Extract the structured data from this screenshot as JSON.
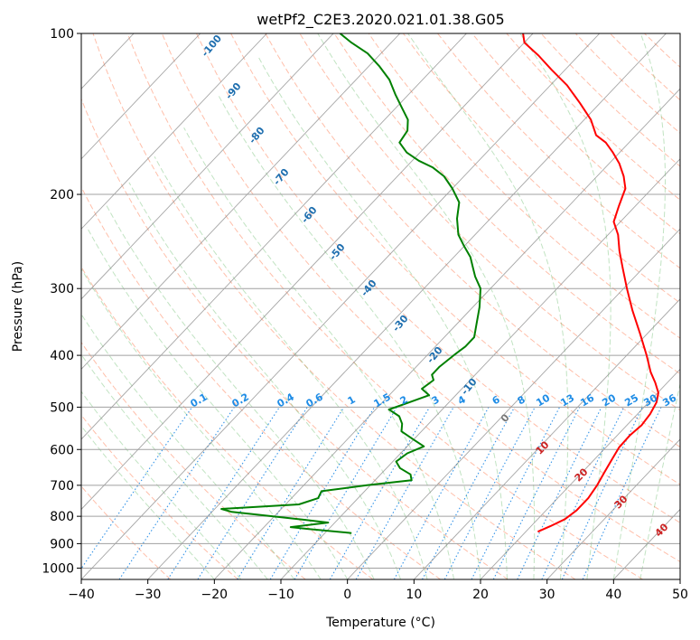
{
  "chart_data": {
    "type": "line",
    "title": "wetPf2_C2E3.2020.021.01.38.G05",
    "xlabel": "Temperature (°C)",
    "ylabel": "Pressure (hPa)",
    "xlim": [
      -40,
      50
    ],
    "ylim": [
      1050,
      100
    ],
    "yscale": "log",
    "x_ticks": [
      -40,
      -30,
      -20,
      -10,
      0,
      10,
      20,
      30,
      40,
      50
    ],
    "y_ticks": [
      100,
      200,
      300,
      400,
      500,
      600,
      700,
      800,
      900,
      1000
    ],
    "grid": true,
    "skew": true,
    "series": [
      {
        "color": "#ff0000",
        "points": [
          [
            21.8,
            855
          ],
          [
            22.9,
            835
          ],
          [
            24.1,
            810
          ],
          [
            24.6,
            780
          ],
          [
            24.6,
            740
          ],
          [
            24.1,
            700
          ],
          [
            23.3,
            660
          ],
          [
            22.6,
            625
          ],
          [
            22.0,
            595
          ],
          [
            21.9,
            565
          ],
          [
            22.2,
            540
          ],
          [
            21.9,
            515
          ],
          [
            21.2,
            490
          ],
          [
            20.1,
            470
          ],
          [
            18.2,
            450
          ],
          [
            16.0,
            430
          ],
          [
            13.0,
            400
          ],
          [
            9.0,
            365
          ],
          [
            4.5,
            330
          ],
          [
            0.5,
            300
          ],
          [
            -3.0,
            275
          ],
          [
            -6.0,
            255
          ],
          [
            -8.5,
            238
          ],
          [
            -11.0,
            225
          ],
          [
            -12.5,
            210
          ],
          [
            -14.0,
            195
          ],
          [
            -16.0,
            185
          ],
          [
            -18.5,
            175
          ],
          [
            -21.0,
            167
          ],
          [
            -23.5,
            160
          ],
          [
            -26.0,
            155
          ],
          [
            -29.0,
            145
          ],
          [
            -33.0,
            135
          ],
          [
            -37.5,
            125
          ],
          [
            -42.0,
            117
          ],
          [
            -46.0,
            110
          ],
          [
            -50.0,
            104
          ],
          [
            -51.5,
            100
          ]
        ]
      },
      {
        "color": "#008000",
        "points": [
          [
            -6.0,
            860
          ],
          [
            -13.0,
            845
          ],
          [
            -16.0,
            838
          ],
          [
            -11.0,
            822
          ],
          [
            -15.0,
            812
          ],
          [
            -27.0,
            785
          ],
          [
            -29.0,
            775
          ],
          [
            -18.0,
            760
          ],
          [
            -16.0,
            740
          ],
          [
            -16.5,
            718
          ],
          [
            -10.5,
            700
          ],
          [
            -4.5,
            685
          ],
          [
            -5.5,
            668
          ],
          [
            -8.0,
            650
          ],
          [
            -9.5,
            632
          ],
          [
            -9.0,
            610
          ],
          [
            -7.5,
            592
          ],
          [
            -10.0,
            575
          ],
          [
            -13.0,
            555
          ],
          [
            -14.0,
            537
          ],
          [
            -15.5,
            520
          ],
          [
            -18.0,
            505
          ],
          [
            -16.0,
            490
          ],
          [
            -14.0,
            475
          ],
          [
            -16.0,
            462
          ],
          [
            -15.5,
            445
          ],
          [
            -16.5,
            435
          ],
          [
            -16.5,
            420
          ],
          [
            -16.0,
            400
          ],
          [
            -15.5,
            385
          ],
          [
            -15.5,
            370
          ],
          [
            -17.0,
            350
          ],
          [
            -19.0,
            325
          ],
          [
            -21.5,
            300
          ],
          [
            -24.0,
            285
          ],
          [
            -25.5,
            275
          ],
          [
            -27.5,
            262
          ],
          [
            -30.0,
            250
          ],
          [
            -32.5,
            238
          ],
          [
            -35.0,
            222
          ],
          [
            -37.0,
            207
          ],
          [
            -40.0,
            195
          ],
          [
            -43.0,
            185
          ],
          [
            -46.0,
            178
          ],
          [
            -49.0,
            173
          ],
          [
            -52.0,
            167
          ],
          [
            -54.5,
            160
          ],
          [
            -55.0,
            152
          ],
          [
            -56.5,
            145
          ],
          [
            -59.0,
            138
          ],
          [
            -62.0,
            130
          ],
          [
            -65.0,
            122
          ],
          [
            -68.5,
            115
          ],
          [
            -72.0,
            109
          ],
          [
            -76.0,
            104
          ],
          [
            -79.0,
            100
          ]
        ]
      }
    ],
    "mixing_ratio_labels": [
      "0.1",
      "0.2",
      "0.4",
      "0.6",
      "1",
      "1.5",
      "2",
      "3",
      "4",
      "6",
      "8",
      "10",
      "13",
      "16",
      "20",
      "25",
      "30",
      "36"
    ],
    "dry_adiabat_labels": [
      "-100",
      "-90",
      "-80",
      "-70",
      "-60",
      "-50",
      "-40",
      "-30",
      "-20",
      "-10",
      "0"
    ],
    "moist_adiabat_labels": [
      "10",
      "20",
      "30",
      "40"
    ]
  },
  "colors": {
    "temperature": "#ff0000",
    "dewpoint": "#008000",
    "dry_adiabat": "#ff8a65",
    "moist_adiabat": "#4caf50",
    "mixing_ratio": "#1e88e5",
    "isotherm": "#808080",
    "isobar": "#a0a0a0"
  }
}
